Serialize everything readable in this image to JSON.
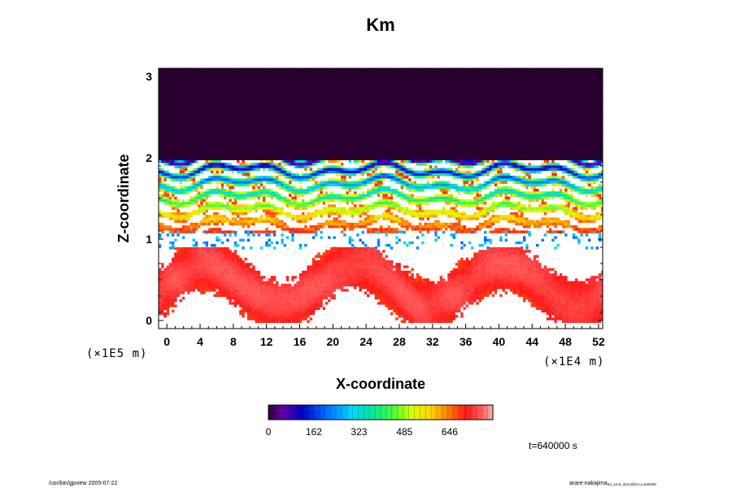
{
  "chart_data": {
    "type": "heatmap",
    "title": "Km",
    "xlabel": "X-coordinate",
    "ylabel": "Z-coordinate",
    "x_unit": "(×1E4 m)",
    "y_unit": "(×1E5 m)",
    "xlim": [
      -1,
      52.5
    ],
    "ylim": [
      -0.1,
      3.1
    ],
    "x_ticks": [
      0,
      4,
      8,
      12,
      16,
      20,
      24,
      28,
      32,
      36,
      40,
      44,
      48,
      52
    ],
    "y_ticks": [
      0,
      1,
      2,
      3
    ],
    "x_tick_labels": [
      "0",
      "4",
      "8",
      "12",
      "16",
      "20",
      "24",
      "28",
      "32",
      "36",
      "40",
      "44",
      "48",
      "52"
    ],
    "y_tick_labels": [
      "0",
      "1",
      "2",
      "3"
    ],
    "colorbar": {
      "min": 0,
      "max": 800,
      "tick_values": [
        0,
        162,
        323,
        485,
        646
      ],
      "tick_labels": [
        "0",
        "162",
        "323",
        "485",
        "646"
      ]
    },
    "regions": [
      {
        "feature": "uniform",
        "z_range": [
          1.97,
          3.1
        ],
        "value": 0
      },
      {
        "feature": "dense banded turbulence",
        "z_range": [
          1.1,
          1.97
        ],
        "value_range": [
          0,
          800
        ]
      },
      {
        "feature": "scattered weak patches",
        "z_range": [
          0.9,
          1.1
        ],
        "value_range": [
          0,
          320
        ]
      },
      {
        "feature": "boundary-layer plumes",
        "z_range": [
          0.0,
          0.9
        ],
        "value_range": [
          0,
          780
        ]
      }
    ],
    "time_label": "t=640000 s"
  },
  "footer": {
    "left": "/usr/bin/gpview 2005-07-22",
    "right_main": "arare-nakajima",
    "right_sub": "03_1e-5_strnc@Km,t=640000"
  }
}
